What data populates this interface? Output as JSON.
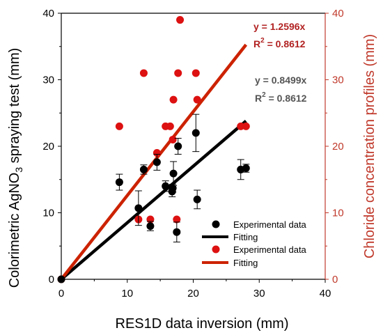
{
  "colors": {
    "black_series": "#000000",
    "red_series": "#cc2200",
    "red_fill": "#dd1111",
    "red_axis": "#c0392b",
    "gray_text": "#555555",
    "red_text": "#b22222"
  },
  "chart_data": {
    "type": "scatter",
    "xlabel": "RES1D data inversion (mm)",
    "ylabel_left_pre": "Colorimetric AgNO",
    "ylabel_left_sub": "3",
    "ylabel_left_post": " spraying test (mm)",
    "ylabel_right": "Chloride concentration profiles (mm)",
    "xlim": [
      0,
      40
    ],
    "ylim_left": [
      0,
      40
    ],
    "ylim_right": [
      0,
      40
    ],
    "x_ticks": [
      "0",
      "10",
      "20",
      "30",
      "40"
    ],
    "y_left_ticks": [
      "0",
      "10",
      "20",
      "30",
      "40"
    ],
    "y_right_ticks": [
      "0",
      "10",
      "20",
      "30",
      "40"
    ],
    "series": [
      {
        "name": "Experimental data",
        "kind": "points",
        "axis": "left",
        "color": "#000000",
        "points": [
          {
            "x": 0,
            "y": 0,
            "err": 0
          },
          {
            "x": 8.8,
            "y": 14.6,
            "err": 1.2
          },
          {
            "x": 11.7,
            "y": 10.7,
            "err": 2.6
          },
          {
            "x": 12.5,
            "y": 16.5,
            "err": 0.7
          },
          {
            "x": 13.5,
            "y": 8.0,
            "err": 0.7
          },
          {
            "x": 14.5,
            "y": 17.6,
            "err": 1.2
          },
          {
            "x": 15.8,
            "y": 14.0,
            "err": 0.8
          },
          {
            "x": 16.8,
            "y": 13.2,
            "err": 0.8
          },
          {
            "x": 16.9,
            "y": 13.7,
            "err": 0.6
          },
          {
            "x": 17.0,
            "y": 15.9,
            "err": 1.8
          },
          {
            "x": 17.5,
            "y": 7.1,
            "err": 1.5
          },
          {
            "x": 17.7,
            "y": 20.0,
            "err": 1.2
          },
          {
            "x": 20.4,
            "y": 22.0,
            "err": 2.8
          },
          {
            "x": 20.6,
            "y": 12.0,
            "err": 1.4
          },
          {
            "x": 27.2,
            "y": 16.5,
            "err": 1.5
          },
          {
            "x": 28.0,
            "y": 16.7,
            "err": 0.6
          }
        ]
      },
      {
        "name": "Fitting",
        "kind": "line",
        "axis": "left",
        "color": "#000000",
        "slope": 0.8499,
        "x_range": [
          0,
          28
        ]
      },
      {
        "name": "Experimental data",
        "kind": "points",
        "axis": "right",
        "color": "#dd1111",
        "points": [
          {
            "x": 0,
            "y": 0
          },
          {
            "x": 8.8,
            "y": 23.0
          },
          {
            "x": 11.7,
            "y": 9.0
          },
          {
            "x": 12.5,
            "y": 31.0
          },
          {
            "x": 13.5,
            "y": 9.0
          },
          {
            "x": 14.5,
            "y": 19.0
          },
          {
            "x": 15.8,
            "y": 23.0
          },
          {
            "x": 16.5,
            "y": 23.0
          },
          {
            "x": 16.9,
            "y": 21.0
          },
          {
            "x": 17.0,
            "y": 27.0
          },
          {
            "x": 17.5,
            "y": 9.0
          },
          {
            "x": 17.7,
            "y": 31.0
          },
          {
            "x": 18.0,
            "y": 39.0
          },
          {
            "x": 20.4,
            "y": 31.0
          },
          {
            "x": 20.6,
            "y": 27.0
          },
          {
            "x": 27.2,
            "y": 23.0
          },
          {
            "x": 28.0,
            "y": 23.0
          }
        ]
      },
      {
        "name": "Fitting",
        "kind": "line",
        "axis": "right",
        "color": "#cc2200",
        "slope": 1.2596,
        "x_range": [
          0,
          28
        ]
      }
    ],
    "annotations": {
      "red_eq": "y = 1.2596x",
      "red_r2_base": "R",
      "red_r2_sup": "2",
      "red_r2_val": " = 0.8612",
      "black_eq": "y = 0.8499x",
      "black_r2_base": "R",
      "black_r2_sup": "2",
      "black_r2_val": " = 0.8612"
    },
    "legend": {
      "placement": "bottom-right",
      "entries": [
        "Experimental data",
        "Fitting",
        "Experimental data",
        "Fitting"
      ]
    }
  }
}
